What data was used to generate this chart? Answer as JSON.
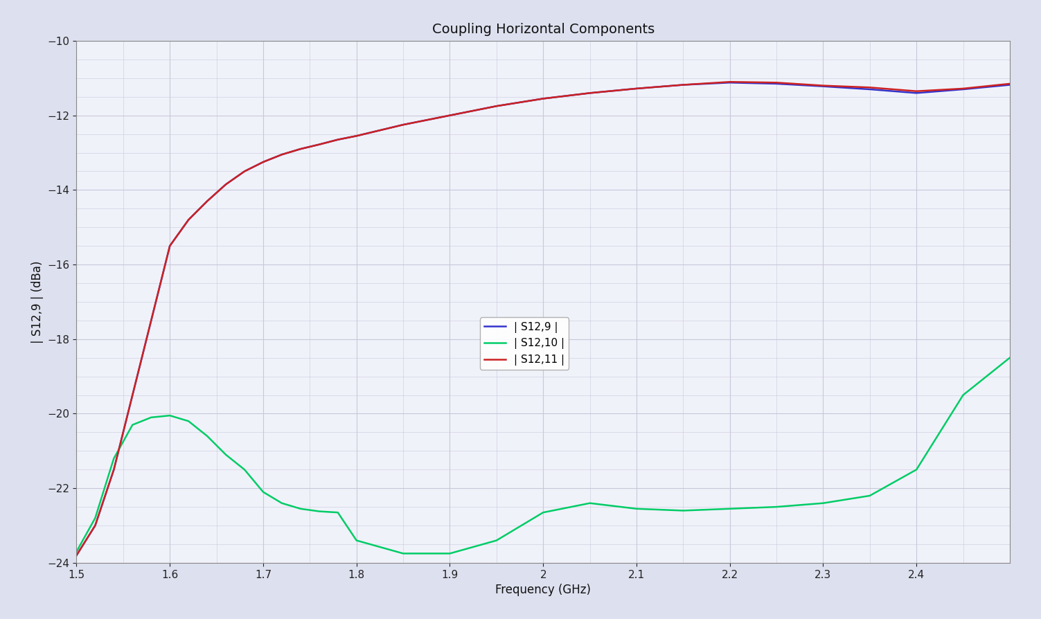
{
  "title": "Coupling Horizontal Components",
  "xlabel": "Frequency (GHz)",
  "ylabel": "| S12,9 | (dBa)",
  "xlim": [
    1.5,
    2.5
  ],
  "ylim": [
    -24,
    -10
  ],
  "xticks": [
    1.5,
    1.6,
    1.7,
    1.8,
    1.9,
    2.0,
    2.1,
    2.2,
    2.3,
    2.4
  ],
  "yticks": [
    -24,
    -22,
    -20,
    -18,
    -16,
    -14,
    -12,
    -10
  ],
  "legend_labels": [
    "| S12,9 |",
    "| S12,10 |",
    "| S12,11 |"
  ],
  "line_colors": [
    "#3333cc",
    "#00cc66",
    "#cc2222"
  ],
  "background_color": "#eef0f8",
  "grid_color": "#c8c8d8",
  "title_fontsize": 14,
  "axis_label_fontsize": 12,
  "tick_fontsize": 11,
  "legend_fontsize": 11,
  "freq_s129": [
    1.5,
    1.52,
    1.54,
    1.56,
    1.58,
    1.6,
    1.62,
    1.64,
    1.66,
    1.68,
    1.7,
    1.72,
    1.74,
    1.76,
    1.78,
    1.8,
    1.85,
    1.9,
    1.95,
    2.0,
    2.05,
    2.1,
    2.15,
    2.2,
    2.25,
    2.3,
    2.35,
    2.4,
    2.45,
    2.5
  ],
  "vals_s129": [
    -23.8,
    -23.0,
    -21.5,
    -19.5,
    -17.5,
    -15.5,
    -14.8,
    -14.3,
    -13.85,
    -13.5,
    -13.25,
    -13.05,
    -12.9,
    -12.78,
    -12.65,
    -12.55,
    -12.25,
    -12.0,
    -11.75,
    -11.55,
    -11.4,
    -11.28,
    -11.18,
    -11.12,
    -11.15,
    -11.22,
    -11.3,
    -11.4,
    -11.3,
    -11.18
  ],
  "freq_s1210": [
    1.5,
    1.52,
    1.54,
    1.56,
    1.58,
    1.6,
    1.62,
    1.64,
    1.66,
    1.68,
    1.7,
    1.72,
    1.74,
    1.76,
    1.78,
    1.8,
    1.85,
    1.9,
    1.95,
    2.0,
    2.05,
    2.1,
    2.15,
    2.2,
    2.25,
    2.3,
    2.35,
    2.4,
    2.45,
    2.5
  ],
  "vals_s1210": [
    -23.7,
    -22.8,
    -21.2,
    -20.3,
    -20.1,
    -20.05,
    -20.2,
    -20.6,
    -21.1,
    -21.5,
    -22.1,
    -22.4,
    -22.55,
    -22.62,
    -22.65,
    -23.4,
    -23.75,
    -23.75,
    -23.4,
    -22.65,
    -22.4,
    -22.55,
    -22.6,
    -22.55,
    -22.5,
    -22.4,
    -22.2,
    -21.5,
    -19.5,
    -18.5
  ],
  "freq_s1211": [
    1.5,
    1.52,
    1.54,
    1.56,
    1.58,
    1.6,
    1.62,
    1.64,
    1.66,
    1.68,
    1.7,
    1.72,
    1.74,
    1.76,
    1.78,
    1.8,
    1.85,
    1.9,
    1.95,
    2.0,
    2.05,
    2.1,
    2.15,
    2.2,
    2.25,
    2.3,
    2.35,
    2.4,
    2.45,
    2.5
  ],
  "vals_s1211": [
    -23.8,
    -23.0,
    -21.5,
    -19.5,
    -17.5,
    -15.5,
    -14.8,
    -14.3,
    -13.85,
    -13.5,
    -13.25,
    -13.05,
    -12.9,
    -12.78,
    -12.65,
    -12.55,
    -12.25,
    -12.0,
    -11.75,
    -11.55,
    -11.4,
    -11.28,
    -11.18,
    -11.1,
    -11.12,
    -11.2,
    -11.25,
    -11.35,
    -11.28,
    -11.15
  ]
}
